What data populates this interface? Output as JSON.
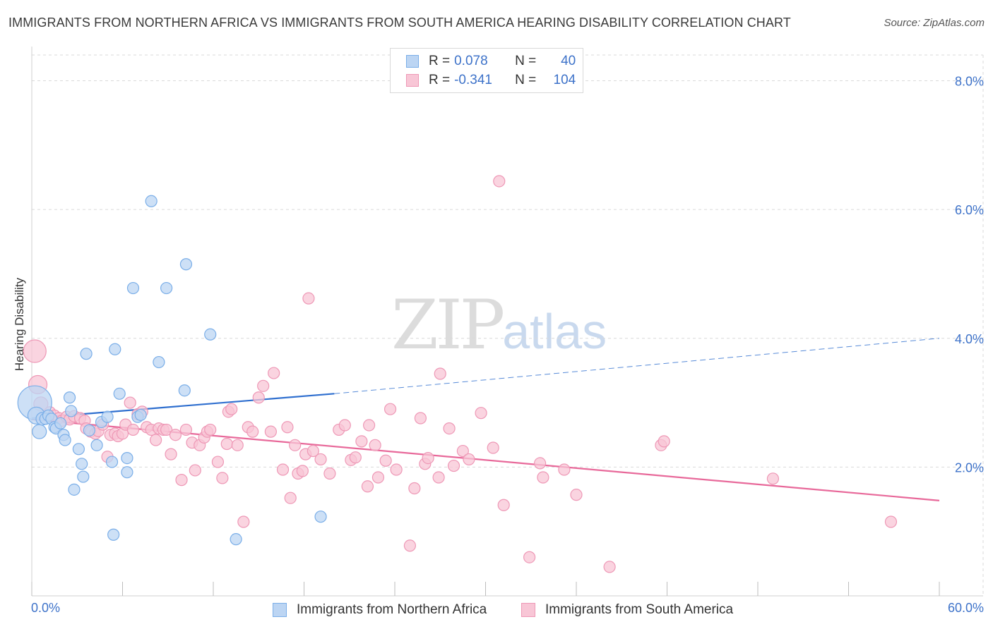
{
  "header": {
    "title": "IMMIGRANTS FROM NORTHERN AFRICA VS IMMIGRANTS FROM SOUTH AMERICA HEARING DISABILITY CORRELATION CHART",
    "source": "Source: ZipAtlas.com"
  },
  "watermark": {
    "zip": "ZIP",
    "atlas": "atlas"
  },
  "legend": {
    "rows": [
      {
        "r_label": "R = ",
        "r_value": "0.078",
        "n_label": "N = ",
        "n_value": "40",
        "color": "#7aaee8"
      },
      {
        "r_label": "R = ",
        "r_value": "-0.341",
        "n_label": "N = ",
        "n_value": "104",
        "color": "#f29ab6"
      }
    ]
  },
  "colors": {
    "blue_fill": "#bcd5f3",
    "blue_stroke": "#7aaee8",
    "blue_line": "#2f6fcf",
    "pink_fill": "#f8c6d6",
    "pink_stroke": "#ee98b6",
    "pink_line": "#e8699a",
    "tick_label": "#3d72c9",
    "grid": "#d9d9d9"
  },
  "chart_data": {
    "type": "scatter",
    "title": "IMMIGRANTS FROM NORTHERN AFRICA VS IMMIGRANTS FROM SOUTH AMERICA HEARING DISABILITY CORRELATION CHART",
    "xlabel": "",
    "ylabel": "Hearing Disability",
    "xlim": [
      0,
      60
    ],
    "ylim": [
      0,
      8.4
    ],
    "x_tick_labels": [
      "0.0%",
      "60.0%"
    ],
    "y_ticks": [
      2,
      4,
      6,
      8
    ],
    "y_tick_labels": [
      "2.0%",
      "4.0%",
      "6.0%",
      "8.0%"
    ],
    "grid": true,
    "legend_position": "top-center",
    "series": [
      {
        "name": "Immigrants from Northern Africa",
        "color": "#7aaee8",
        "r": 0.078,
        "n": 40,
        "points": [
          [
            0.2,
            3.0,
            24
          ],
          [
            0.3,
            2.8,
            12
          ],
          [
            0.5,
            2.55,
            10
          ],
          [
            0.7,
            2.75,
            9
          ],
          [
            0.9,
            2.75,
            8
          ],
          [
            1.1,
            2.8,
            8
          ],
          [
            1.3,
            2.75,
            8
          ],
          [
            1.5,
            2.62,
            8
          ],
          [
            1.6,
            2.6,
            8
          ],
          [
            1.9,
            2.68,
            8
          ],
          [
            2.1,
            2.5,
            8
          ],
          [
            2.2,
            2.42,
            8
          ],
          [
            2.5,
            3.08,
            8
          ],
          [
            2.6,
            2.87,
            8
          ],
          [
            2.8,
            1.65,
            8
          ],
          [
            3.1,
            2.28,
            8
          ],
          [
            3.3,
            2.05,
            8
          ],
          [
            3.4,
            1.85,
            8
          ],
          [
            3.6,
            3.76,
            8
          ],
          [
            3.8,
            2.57,
            8
          ],
          [
            4.3,
            2.34,
            8
          ],
          [
            4.6,
            2.7,
            8
          ],
          [
            5.0,
            2.78,
            8
          ],
          [
            5.3,
            2.08,
            8
          ],
          [
            5.4,
            0.95,
            8
          ],
          [
            5.5,
            3.83,
            8
          ],
          [
            5.8,
            3.14,
            8
          ],
          [
            6.3,
            2.14,
            8
          ],
          [
            6.3,
            1.92,
            8
          ],
          [
            6.7,
            4.78,
            8
          ],
          [
            7.0,
            2.78,
            8
          ],
          [
            7.2,
            2.81,
            8
          ],
          [
            7.9,
            6.13,
            8
          ],
          [
            8.4,
            3.63,
            8
          ],
          [
            8.9,
            4.78,
            8
          ],
          [
            10.1,
            3.19,
            8
          ],
          [
            10.2,
            5.15,
            8
          ],
          [
            11.8,
            4.06,
            8
          ],
          [
            13.5,
            0.88,
            8
          ],
          [
            19.1,
            1.23,
            8
          ]
        ],
        "trend": {
          "x0": 0,
          "y0": 2.76,
          "x1": 20,
          "y1": 3.14,
          "dashed_to_x": 60,
          "dashed_to_y": 4.0
        }
      },
      {
        "name": "Immigrants from South America",
        "color": "#ee98b6",
        "r": -0.341,
        "n": 104,
        "points": [
          [
            0.2,
            3.8,
            16
          ],
          [
            0.4,
            3.28,
            13
          ],
          [
            0.6,
            2.98,
            10
          ],
          [
            1.2,
            2.85,
            8
          ],
          [
            1.5,
            2.8,
            8
          ],
          [
            1.8,
            2.76,
            8
          ],
          [
            2.0,
            2.72,
            8
          ],
          [
            2.3,
            2.78,
            8
          ],
          [
            2.5,
            2.74,
            8
          ],
          [
            2.8,
            2.79,
            8
          ],
          [
            3.2,
            2.76,
            8
          ],
          [
            3.5,
            2.72,
            8
          ],
          [
            3.6,
            2.6,
            8
          ],
          [
            3.9,
            2.55,
            8
          ],
          [
            4.2,
            2.52,
            8
          ],
          [
            4.4,
            2.56,
            8
          ],
          [
            4.7,
            2.66,
            8
          ],
          [
            5.0,
            2.16,
            8
          ],
          [
            5.2,
            2.5,
            8
          ],
          [
            5.5,
            2.52,
            8
          ],
          [
            5.7,
            2.48,
            8
          ],
          [
            6.0,
            2.52,
            8
          ],
          [
            6.2,
            2.66,
            8
          ],
          [
            6.5,
            3.0,
            8
          ],
          [
            6.7,
            2.58,
            8
          ],
          [
            7.0,
            2.82,
            8
          ],
          [
            7.3,
            2.86,
            8
          ],
          [
            7.6,
            2.62,
            8
          ],
          [
            7.9,
            2.58,
            8
          ],
          [
            8.2,
            2.42,
            8
          ],
          [
            8.4,
            2.6,
            8
          ],
          [
            8.7,
            2.58,
            8
          ],
          [
            8.9,
            2.58,
            8
          ],
          [
            9.2,
            2.2,
            8
          ],
          [
            9.5,
            2.5,
            8
          ],
          [
            9.9,
            1.8,
            8
          ],
          [
            10.2,
            2.58,
            8
          ],
          [
            10.6,
            2.38,
            8
          ],
          [
            10.8,
            1.95,
            8
          ],
          [
            11.1,
            2.34,
            8
          ],
          [
            11.4,
            2.46,
            8
          ],
          [
            11.6,
            2.55,
            8
          ],
          [
            11.8,
            2.58,
            8
          ],
          [
            12.3,
            2.08,
            8
          ],
          [
            12.6,
            1.83,
            8
          ],
          [
            12.9,
            2.36,
            8
          ],
          [
            13.0,
            2.86,
            8
          ],
          [
            13.2,
            2.9,
            8
          ],
          [
            13.6,
            2.34,
            8
          ],
          [
            14.0,
            1.15,
            8
          ],
          [
            14.3,
            2.62,
            8
          ],
          [
            14.6,
            2.55,
            8
          ],
          [
            15.0,
            3.08,
            8
          ],
          [
            15.3,
            3.26,
            8
          ],
          [
            15.8,
            2.55,
            8
          ],
          [
            16.0,
            3.46,
            8
          ],
          [
            16.6,
            1.96,
            8
          ],
          [
            16.9,
            2.62,
            8
          ],
          [
            17.1,
            1.52,
            8
          ],
          [
            17.4,
            2.34,
            8
          ],
          [
            17.6,
            1.9,
            8
          ],
          [
            17.9,
            1.94,
            8
          ],
          [
            18.1,
            2.2,
            8
          ],
          [
            18.3,
            4.62,
            8
          ],
          [
            18.6,
            2.25,
            8
          ],
          [
            19.1,
            2.12,
            8
          ],
          [
            19.7,
            1.9,
            8
          ],
          [
            20.3,
            2.58,
            8
          ],
          [
            20.7,
            2.65,
            8
          ],
          [
            21.1,
            2.11,
            8
          ],
          [
            21.4,
            2.15,
            8
          ],
          [
            21.8,
            2.4,
            8
          ],
          [
            22.2,
            1.7,
            8
          ],
          [
            22.3,
            2.65,
            8
          ],
          [
            22.7,
            2.34,
            8
          ],
          [
            22.9,
            1.84,
            8
          ],
          [
            23.4,
            2.1,
            8
          ],
          [
            23.7,
            2.9,
            8
          ],
          [
            24.1,
            1.96,
            8
          ],
          [
            25.0,
            0.78,
            8
          ],
          [
            25.3,
            1.67,
            8
          ],
          [
            25.7,
            2.76,
            8
          ],
          [
            26.0,
            2.05,
            8
          ],
          [
            26.2,
            2.14,
            8
          ],
          [
            26.9,
            1.84,
            8
          ],
          [
            27.0,
            3.45,
            8
          ],
          [
            27.6,
            2.6,
            8
          ],
          [
            27.9,
            2.02,
            8
          ],
          [
            28.5,
            2.25,
            8
          ],
          [
            28.9,
            2.12,
            8
          ],
          [
            29.7,
            2.84,
            8
          ],
          [
            30.5,
            2.3,
            8
          ],
          [
            30.9,
            6.44,
            8
          ],
          [
            31.2,
            1.41,
            8
          ],
          [
            32.9,
            0.6,
            8
          ],
          [
            33.6,
            2.06,
            8
          ],
          [
            33.8,
            1.84,
            8
          ],
          [
            35.2,
            1.96,
            8
          ],
          [
            36.0,
            1.57,
            8
          ],
          [
            38.2,
            0.45,
            8
          ],
          [
            41.6,
            2.34,
            8
          ],
          [
            41.8,
            2.4,
            8
          ],
          [
            49.0,
            1.82,
            8
          ],
          [
            56.8,
            1.15,
            8
          ]
        ],
        "trend": {
          "x0": 0,
          "y0": 2.74,
          "x1": 60,
          "y1": 1.48
        }
      }
    ]
  },
  "bottom_legend": {
    "items": [
      {
        "label": "Immigrants from Northern Africa"
      },
      {
        "label": "Immigrants from South America"
      }
    ]
  }
}
